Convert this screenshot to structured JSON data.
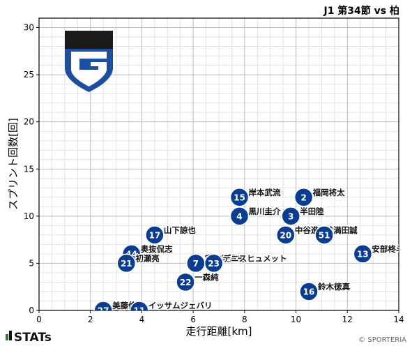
{
  "header": {
    "title": "J1 第34節 vs 柏"
  },
  "branding": {
    "stats_logo": "STATs",
    "copyright": "© SPORTERIA",
    "club_logo": "gamba-osaka-crest"
  },
  "colors": {
    "marker": "#0a3d91",
    "marker_edge": "#ffffff",
    "grid_major": "#bbbbbb",
    "grid_minor": "#e2e2e2",
    "logo_blue": "#1c4fa1",
    "logo_black": "#1a1a1a"
  },
  "chart_data": {
    "type": "scatter",
    "xlabel": "走行距離[km]",
    "ylabel": "スプリント回数[回]",
    "xlim": [
      0,
      14
    ],
    "ylim": [
      0,
      31
    ],
    "xticks": [
      0,
      2,
      4,
      6,
      8,
      10,
      12,
      14
    ],
    "yticks": [
      0,
      5,
      10,
      15,
      20,
      25,
      30
    ],
    "grid": true,
    "points": [
      {
        "number": "15",
        "name": "岸本武流",
        "x": 7.8,
        "y": 12
      },
      {
        "number": "2",
        "name": "福岡将太",
        "x": 10.3,
        "y": 12
      },
      {
        "number": "4",
        "name": "黒川圭介",
        "x": 7.8,
        "y": 10
      },
      {
        "number": "3",
        "name": "半田陸",
        "x": 9.8,
        "y": 10
      },
      {
        "number": "20",
        "name": "中谷進之介",
        "x": 9.6,
        "y": 8
      },
      {
        "number": "51",
        "name": "満田誠",
        "x": 11.1,
        "y": 8
      },
      {
        "number": "13",
        "name": "安部柊斗",
        "x": 12.6,
        "y": 6
      },
      {
        "number": "17",
        "name": "山下諒也",
        "x": 4.5,
        "y": 8
      },
      {
        "number": "44",
        "name": "奥抜侃志",
        "x": 3.6,
        "y": 6
      },
      {
        "number": "21",
        "name": "初瀬亮",
        "x": 3.4,
        "y": 5
      },
      {
        "number": "7",
        "name": "宇佐美貴史",
        "x": 6.1,
        "y": 5
      },
      {
        "number": "23",
        "name": "デニスヒュメット",
        "x": 6.8,
        "y": 5
      },
      {
        "number": "22",
        "name": "一森純",
        "x": 5.7,
        "y": 3
      },
      {
        "number": "16",
        "name": "鈴木徳真",
        "x": 10.5,
        "y": 2
      },
      {
        "number": "27",
        "name": "美藤倫",
        "x": 2.5,
        "y": 0
      },
      {
        "number": "11",
        "name": "イッサムジェバリ",
        "x": 3.9,
        "y": 0
      }
    ]
  }
}
